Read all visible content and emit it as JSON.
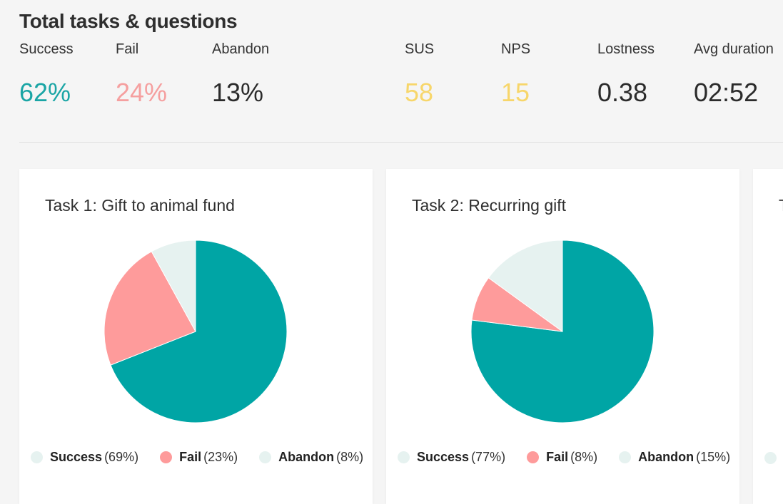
{
  "header": {
    "title": "Total tasks & questions"
  },
  "stats": [
    {
      "label": "Success",
      "value": "62%",
      "color": "#1aa5a5"
    },
    {
      "label": "Fail",
      "value": "24%",
      "color": "#f59f9f"
    },
    {
      "label": "Abandon",
      "value": "13%",
      "color": "#2b2b2b"
    },
    {
      "label": "SUS",
      "value": "58",
      "color": "#f7d66a"
    },
    {
      "label": "NPS",
      "value": "15",
      "color": "#f7d66a"
    },
    {
      "label": "Lostness",
      "value": "0.38",
      "color": "#2b2b2b"
    },
    {
      "label": "Avg duration",
      "value": "02:52",
      "color": "#2b2b2b"
    }
  ],
  "colors": {
    "success": "#00a5a5",
    "fail": "#fe9b9b",
    "abandon": "#e6f2f0"
  },
  "cards": [
    {
      "title": "Task 1: Gift to animal fund",
      "legend": [
        {
          "name": "Success",
          "pct": "(69%)"
        },
        {
          "name": "Fail",
          "pct": "(23%)"
        },
        {
          "name": "Abandon",
          "pct": "(8%)"
        }
      ]
    },
    {
      "title": "Task 2: Recurring gift",
      "legend": [
        {
          "name": "Success",
          "pct": "(77%)"
        },
        {
          "name": "Fail",
          "pct": "(8%)"
        },
        {
          "name": "Abandon",
          "pct": "(15%)"
        }
      ]
    },
    {
      "title": "T",
      "legend": []
    }
  ],
  "chart_data": [
    {
      "type": "pie",
      "title": "Task 1: Gift to animal fund",
      "categories": [
        "Success",
        "Fail",
        "Abandon"
      ],
      "values": [
        69,
        23,
        8
      ]
    },
    {
      "type": "pie",
      "title": "Task 2: Recurring gift",
      "categories": [
        "Success",
        "Fail",
        "Abandon"
      ],
      "values": [
        77,
        8,
        15
      ]
    }
  ]
}
